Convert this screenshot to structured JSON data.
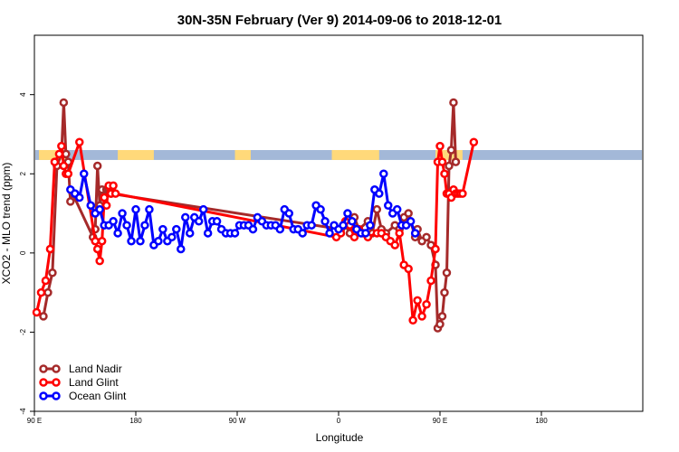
{
  "chart_data": {
    "type": "line",
    "title": "30N-35N February (Ver 9)   2014-09-06 to 2018-12-01",
    "xlabel": "Longitude",
    "ylabel": "XCO2 - MLO trend (ppm)",
    "xlim": [
      -90,
      180
    ],
    "ylim": [
      -4,
      5.5
    ],
    "x_ticks": [
      {
        "value": -90,
        "label": "90 E"
      },
      {
        "value": -45,
        "label": "180"
      },
      {
        "value": 0,
        "label": "90 W"
      },
      {
        "value": 45,
        "label": "0"
      },
      {
        "value": 90,
        "label": "90 E"
      },
      {
        "value": 135,
        "label": "180"
      }
    ],
    "y_ticks": [
      {
        "value": -4,
        "label": "-4"
      },
      {
        "value": -2,
        "label": "-2"
      },
      {
        "value": 0,
        "label": "0"
      },
      {
        "value": 2,
        "label": "2"
      },
      {
        "value": 4,
        "label": "4"
      }
    ],
    "grid": false,
    "legend": {
      "position": "bottom-left"
    },
    "land_mask_band": {
      "y_range": [
        2.35,
        2.6
      ],
      "ocean_color": "#a3b8d8",
      "land_color": "#ffd97a",
      "land_segments": [
        [
          -88,
          -76
        ],
        [
          -53,
          -37
        ],
        [
          -1,
          6
        ],
        [
          42,
          63
        ],
        [
          88,
          100
        ]
      ]
    },
    "series": [
      {
        "name": "Land Nadir",
        "color": "#a52a2a",
        "x": [
          -86,
          -84,
          -82,
          -80,
          -78,
          -77,
          -76,
          -75,
          -74,
          -73,
          -64,
          -63,
          -62,
          -61,
          -60,
          -59,
          -58,
          -57,
          -56,
          46,
          48,
          50,
          52,
          54,
          58,
          60,
          62,
          64,
          66,
          70,
          72,
          74,
          76,
          79,
          80,
          82,
          84,
          86,
          88,
          89,
          90,
          91,
          92,
          93,
          94,
          95,
          96,
          97
        ],
        "values": [
          -1.6,
          -1.0,
          -0.5,
          2.2,
          2.5,
          3.8,
          2.5,
          2.3,
          1.3,
          1.5,
          0.4,
          0.6,
          2.2,
          1.2,
          1.6,
          1.4,
          1.6,
          1.6,
          1.5,
          0.6,
          0.7,
          0.5,
          0.9,
          0.6,
          0.8,
          0.5,
          1.1,
          0.6,
          0.5,
          0.7,
          0.6,
          0.9,
          1.0,
          0.4,
          0.6,
          0.3,
          0.4,
          0.2,
          -0.3,
          -1.9,
          -1.8,
          -1.6,
          -1.0,
          -0.5,
          2.2,
          2.6,
          3.8,
          2.3
        ]
      },
      {
        "name": "Land Glint",
        "color": "#ff0000",
        "x": [
          -89,
          -87,
          -85,
          -83,
          -81,
          -79,
          -78,
          -77,
          -76,
          -75,
          -70,
          -63,
          -62,
          -61,
          -60,
          -59,
          -58,
          -57,
          -56,
          -55,
          -54,
          44,
          46,
          48,
          50,
          52,
          54,
          56,
          58,
          62,
          64,
          66,
          68,
          70,
          72,
          74,
          76,
          78,
          80,
          82,
          84,
          86,
          88,
          89,
          90,
          91,
          92,
          93,
          94,
          95,
          96,
          97,
          98,
          99,
          100,
          105
        ],
        "values": [
          -1.5,
          -1.0,
          -0.7,
          0.1,
          2.3,
          2.5,
          2.7,
          2.2,
          2.0,
          2.0,
          2.8,
          0.3,
          0.1,
          -0.2,
          0.3,
          1.4,
          1.2,
          1.7,
          1.5,
          1.7,
          1.5,
          0.4,
          0.5,
          0.8,
          0.7,
          0.4,
          0.6,
          0.5,
          0.4,
          0.5,
          0.5,
          0.4,
          0.3,
          0.2,
          0.5,
          -0.3,
          -0.4,
          -1.7,
          -1.2,
          -1.6,
          -1.3,
          -0.7,
          0.1,
          2.3,
          2.7,
          2.3,
          2.0,
          1.5,
          1.5,
          1.4,
          1.6,
          1.5,
          1.5,
          1.5,
          1.5,
          2.8
        ]
      },
      {
        "name": "Ocean Glint",
        "color": "#0000ff",
        "x": [
          -74,
          -72,
          -70,
          -68,
          -65,
          -63,
          -61,
          -59,
          -57,
          -55,
          -53,
          -51,
          -49,
          -47,
          -45,
          -43,
          -41,
          -39,
          -37,
          -35,
          -33,
          -31,
          -29,
          -27,
          -25,
          -23,
          -21,
          -19,
          -17,
          -15,
          -13,
          -11,
          -9,
          -7,
          -5,
          -3,
          -1,
          1,
          3,
          5,
          7,
          9,
          11,
          13,
          15,
          17,
          19,
          21,
          23,
          25,
          27,
          29,
          31,
          33,
          35,
          37,
          39,
          41,
          43,
          45,
          47,
          49,
          51,
          53,
          55,
          57,
          59,
          61,
          63,
          65,
          67,
          69,
          71,
          73,
          75,
          77,
          79
        ],
        "values": [
          1.6,
          1.5,
          1.4,
          2.0,
          1.2,
          1.0,
          1.1,
          0.7,
          0.7,
          0.8,
          0.5,
          1.0,
          0.7,
          0.3,
          1.1,
          0.3,
          0.7,
          1.1,
          0.2,
          0.3,
          0.6,
          0.3,
          0.4,
          0.6,
          0.1,
          0.9,
          0.5,
          0.9,
          0.8,
          1.1,
          0.5,
          0.8,
          0.8,
          0.6,
          0.5,
          0.5,
          0.5,
          0.7,
          0.7,
          0.7,
          0.6,
          0.9,
          0.8,
          0.7,
          0.7,
          0.7,
          0.6,
          1.1,
          1.0,
          0.6,
          0.6,
          0.5,
          0.7,
          0.7,
          1.2,
          1.1,
          0.8,
          0.5,
          0.7,
          0.6,
          0.7,
          1.0,
          0.8,
          0.6,
          0.5,
          0.5,
          0.7,
          1.6,
          1.5,
          2.0,
          1.2,
          1.0,
          1.1,
          0.7,
          0.7,
          0.8,
          0.5
        ]
      }
    ]
  }
}
